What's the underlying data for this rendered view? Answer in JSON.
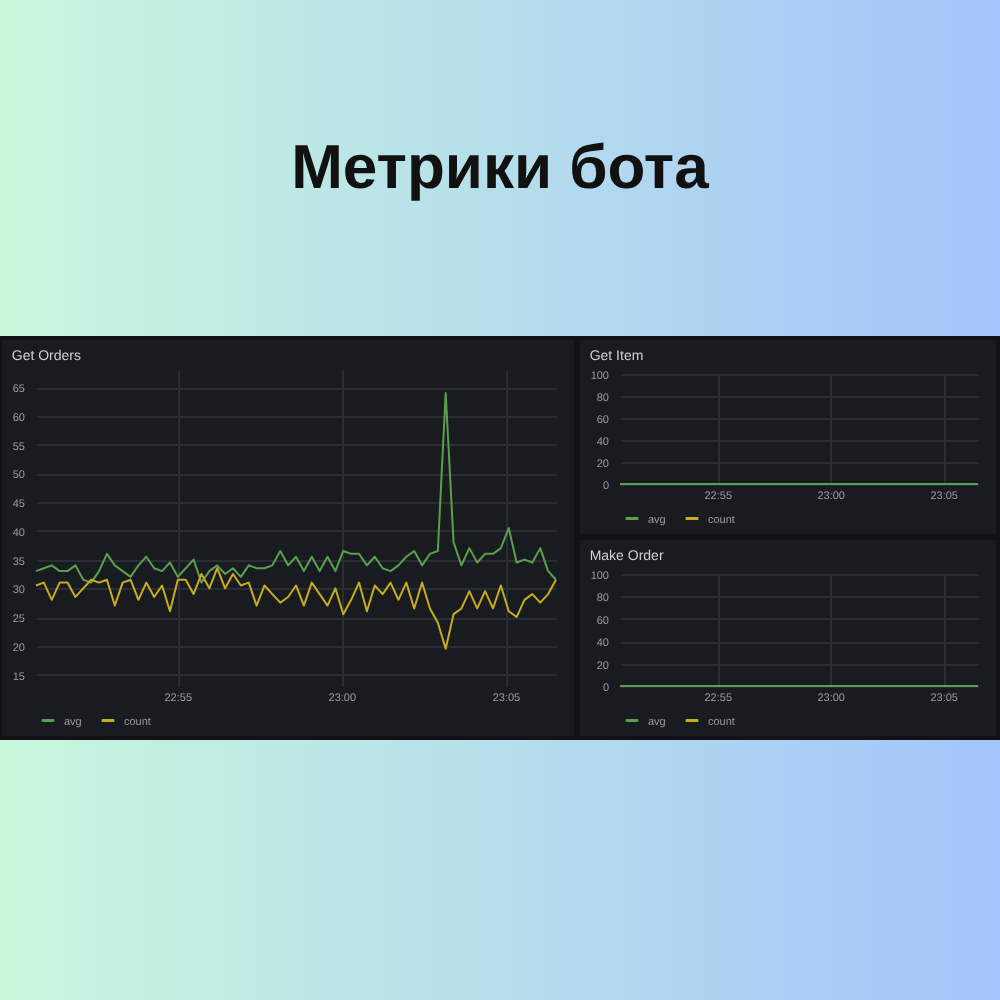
{
  "chart_data": [
    {
      "type": "other",
      "title": "Метрики бота"
    },
    {
      "type": "line",
      "title": "Get Orders",
      "grid": true,
      "legend": "bottom left",
      "xlim": [
        22.845,
        23.109
      ],
      "ylim": [
        13,
        68
      ],
      "xticks": [
        {
          "value": 22.9167,
          "label": "22:55"
        },
        {
          "value": 23,
          "label": "23:00"
        },
        {
          "value": 23.0833,
          "label": "23:05"
        }
      ],
      "yticks": [
        15,
        20,
        25,
        30,
        35,
        40,
        45,
        50,
        55,
        60,
        65
      ],
      "x": [
        22.845,
        22.849,
        22.853,
        22.857,
        22.861,
        22.865,
        22.869,
        22.873,
        22.877,
        22.881,
        22.885,
        22.889,
        22.893,
        22.897,
        22.901,
        22.905,
        22.909,
        22.913,
        22.917,
        22.921,
        22.925,
        22.929,
        22.933,
        22.937,
        22.941,
        22.945,
        22.949,
        22.953,
        22.957,
        22.961,
        22.965,
        22.969,
        22.973,
        22.977,
        22.981,
        22.985,
        22.989,
        22.993,
        22.997,
        23.001,
        23.005,
        23.009,
        23.013,
        23.017,
        23.021,
        23.025,
        23.029,
        23.033,
        23.037,
        23.041,
        23.045,
        23.049,
        23.053,
        23.057,
        23.061,
        23.065,
        23.069,
        23.073,
        23.077,
        23.081,
        23.085,
        23.089,
        23.093,
        23.097,
        23.101,
        23.105,
        23.109
      ],
      "series": [
        {
          "name": "avg",
          "color": "#5b9f4e",
          "values": [
            33,
            33.5,
            34,
            33,
            33,
            34,
            31.5,
            31,
            33,
            36,
            34,
            33,
            32,
            34,
            35.5,
            33.5,
            33,
            34.5,
            32,
            33.5,
            35,
            31,
            33,
            34,
            32.5,
            33.5,
            32,
            34,
            33.5,
            33.5,
            34,
            36.5,
            34,
            35.5,
            33,
            35.5,
            33,
            35.5,
            33,
            36.5,
            36,
            36,
            34,
            35.5,
            33.5,
            33,
            34,
            35.5,
            36.5,
            34,
            36,
            36.5,
            64,
            38,
            34,
            37,
            34.5,
            36,
            36,
            37,
            40.5,
            34.5,
            35,
            34.5,
            37,
            33,
            31.5
          ]
        },
        {
          "name": "count",
          "color": "#c7ad1c",
          "values": [
            30.5,
            31,
            28,
            31,
            31,
            28.5,
            30,
            31.5,
            31,
            31.5,
            27,
            31,
            31.5,
            28,
            31,
            28.5,
            30.5,
            26,
            31.5,
            31.5,
            29,
            32.5,
            30,
            33.5,
            30,
            32.5,
            30.5,
            31,
            27,
            30.5,
            29,
            27.5,
            28.5,
            30.5,
            27,
            31,
            29,
            27,
            30,
            25.5,
            28,
            31,
            26,
            30.5,
            29,
            31,
            28,
            31,
            26.5,
            31,
            26.5,
            24,
            19.5,
            25.5,
            26.5,
            29.5,
            26.5,
            29.5,
            26.5,
            30.5,
            26,
            25,
            28,
            29,
            27.5,
            29,
            31.5
          ]
        }
      ]
    },
    {
      "type": "line",
      "title": "Get Item",
      "grid": true,
      "legend": "bottom left",
      "xlim": [
        22.845,
        23.109
      ],
      "ylim": [
        0,
        100
      ],
      "xticks": [
        {
          "value": 22.9167,
          "label": "22:55"
        },
        {
          "value": 23,
          "label": "23:00"
        },
        {
          "value": 23.0833,
          "label": "23:05"
        }
      ],
      "yticks": [
        0,
        20,
        40,
        60,
        80,
        100
      ],
      "x": [
        22.845,
        23.109
      ],
      "series": [
        {
          "name": "avg",
          "color": "#5b9f4e",
          "values": [
            0,
            0
          ]
        },
        {
          "name": "count",
          "color": "#c7ad1c",
          "values": [
            null,
            null
          ]
        }
      ]
    },
    {
      "type": "line",
      "title": "Make Order",
      "grid": true,
      "legend": "bottom left",
      "xlim": [
        22.845,
        23.109
      ],
      "ylim": [
        0,
        100
      ],
      "xticks": [
        {
          "value": 22.9167,
          "label": "22:55"
        },
        {
          "value": 23,
          "label": "23:00"
        },
        {
          "value": 23.0833,
          "label": "23:05"
        }
      ],
      "yticks": [
        0,
        20,
        40,
        60,
        80,
        100
      ],
      "x": [
        22.845,
        23.109
      ],
      "series": [
        {
          "name": "avg",
          "color": "#5b9f4e",
          "values": [
            0,
            0
          ]
        },
        {
          "name": "count",
          "color": "#c7ad1c",
          "values": [
            null,
            null
          ]
        }
      ]
    }
  ]
}
